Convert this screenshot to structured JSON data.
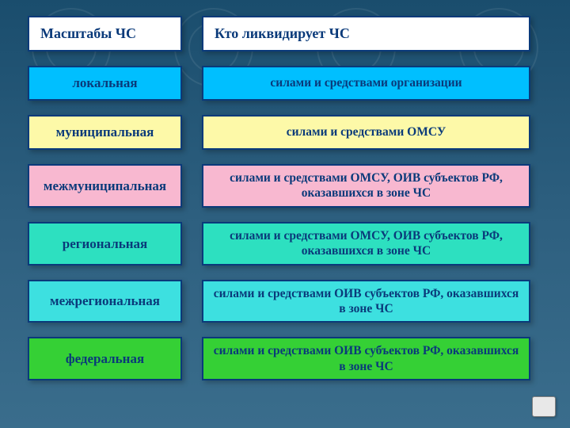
{
  "slide": {
    "background": {
      "gradient_top": "#1a4d6d",
      "gradient_bottom": "#3a6d8c"
    },
    "headers": {
      "left": "Масштабы ЧС",
      "right": "Кто ликвидирует ЧС",
      "bg": "#ffffff",
      "border": "#0a3a7a",
      "text_color": "#0a3a7a",
      "font_size": 18,
      "font_weight": "bold"
    },
    "rows": [
      {
        "scale": "локальная",
        "who": "силами и средствами организации",
        "bg": "#00bfff",
        "tall": false
      },
      {
        "scale": "муниципальная",
        "who": "силами и средствами ОМСУ",
        "bg": "#fdf9a8",
        "tall": false
      },
      {
        "scale": "межмуниципальная",
        "who": "силами и средствами ОМСУ, ОИВ субъектов РФ, оказавшихся в зоне ЧС",
        "bg": "#f8b8d0",
        "tall": true
      },
      {
        "scale": "региональная",
        "who": "силами и средствами ОМСУ, ОИВ субъектов РФ, оказавшихся в зоне ЧС",
        "bg": "#2de0c0",
        "tall": true
      },
      {
        "scale": "межрегиональная",
        "who": "силами и средствами ОИВ субъектов РФ, оказавшихся в зоне ЧС",
        "bg": "#3de0e0",
        "tall": true
      },
      {
        "scale": "федеральная",
        "who": "силами и средствами ОИВ субъектов РФ, оказавшихся в зоне ЧС",
        "bg": "#35d035",
        "tall": true
      }
    ],
    "box_style": {
      "border_color": "#0a3a7a",
      "border_width": 2,
      "text_color": "#0a3a7a",
      "font_weight": "bold",
      "left_font_size": 17,
      "right_font_size": 15.5,
      "shadow": "3px 3px 6px rgba(0,0,0,0.25)"
    }
  }
}
